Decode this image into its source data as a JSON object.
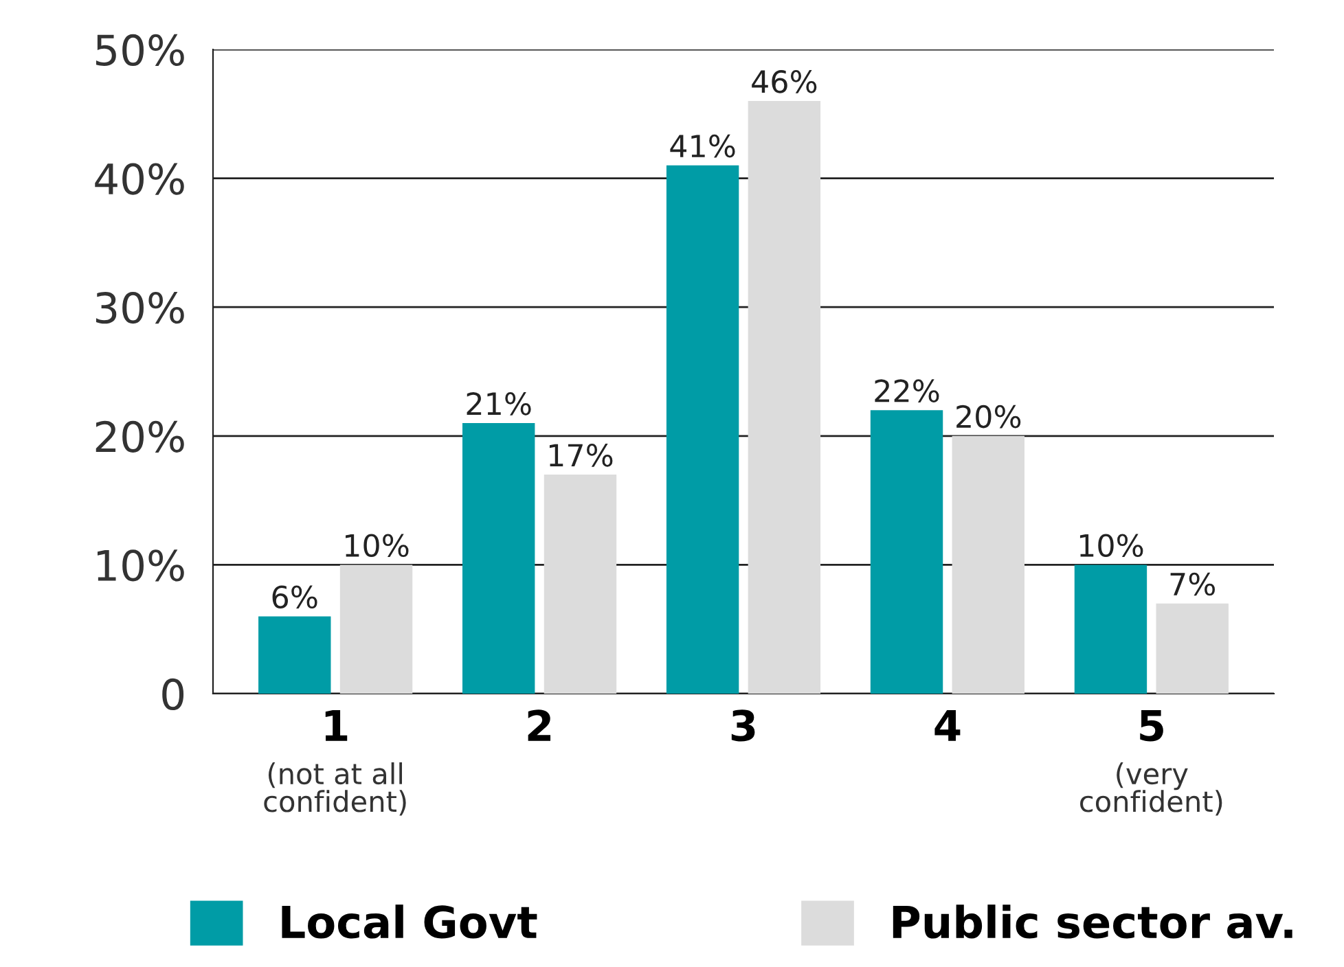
{
  "chart_data": {
    "type": "bar",
    "categories": [
      "1",
      "2",
      "3",
      "4",
      "5"
    ],
    "series": [
      {
        "name": "Local Govt",
        "color": "#009ca6",
        "values": [
          6,
          21,
          41,
          22,
          10
        ],
        "value_labels": [
          "6%",
          "21%",
          "41%",
          "22%",
          "10%"
        ]
      },
      {
        "name": "Public sector av.",
        "color": "#dcdcdc",
        "values": [
          10,
          17,
          46,
          20,
          7
        ],
        "value_labels": [
          "10%",
          "17%",
          "46%",
          "20%",
          "7%"
        ]
      }
    ],
    "ylim": [
      0,
      50
    ],
    "yticks": [
      0,
      {
        "value": 10,
        "label": "10%"
      },
      {
        "value": 20,
        "label": "20%"
      },
      {
        "value": 30,
        "label": "30%"
      },
      {
        "value": 40,
        "label": "40%"
      },
      {
        "value": 50,
        "label": "50%"
      }
    ],
    "grid": "y",
    "legend": "bottom",
    "annotations": [
      "(not at all\nconfident)",
      "(very\nconfident)"
    ]
  }
}
